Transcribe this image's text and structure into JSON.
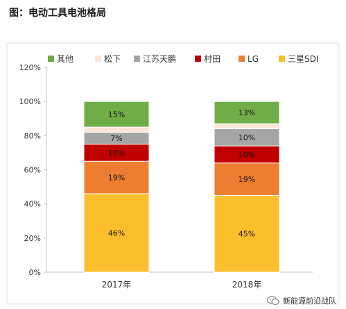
{
  "page": {
    "title": "图：电动工具电池格局",
    "watermark": "新能源前沿战队"
  },
  "colors": {
    "其他": "#70ad47",
    "松下": "#fbe5d6",
    "江苏天鹏": "#a5a5a5",
    "村田": "#c00000",
    "LG": "#ed7d31",
    "三星SDI": "#fbbf2d"
  },
  "chart_data": {
    "type": "bar",
    "stacked": true,
    "categories": [
      "2017年",
      "2018年"
    ],
    "series": [
      {
        "name": "三星SDI",
        "values": [
          46,
          45
        ],
        "labels": [
          "46%",
          "45%"
        ]
      },
      {
        "name": "LG",
        "values": [
          19,
          19
        ],
        "labels": [
          "19%",
          "19%"
        ]
      },
      {
        "name": "村田",
        "values": [
          10,
          10
        ],
        "labels": [
          "10%",
          "10%"
        ]
      },
      {
        "name": "江苏天鹏",
        "values": [
          7,
          10
        ],
        "labels": [
          "7%",
          "10%"
        ]
      },
      {
        "name": "松下",
        "values": [
          3,
          3
        ],
        "labels": [
          "",
          ""
        ]
      },
      {
        "name": "其他",
        "values": [
          15,
          13
        ],
        "labels": [
          "15%",
          "13%"
        ]
      }
    ],
    "legend_order": [
      "其他",
      "松下",
      "江苏天鹏",
      "村田",
      "LG",
      "三星SDI"
    ],
    "legend_position": "top",
    "y_ticks": [
      "0%",
      "20%",
      "40%",
      "60%",
      "80%",
      "100%",
      "120%"
    ],
    "ylim": [
      0,
      120
    ],
    "grid": false
  }
}
